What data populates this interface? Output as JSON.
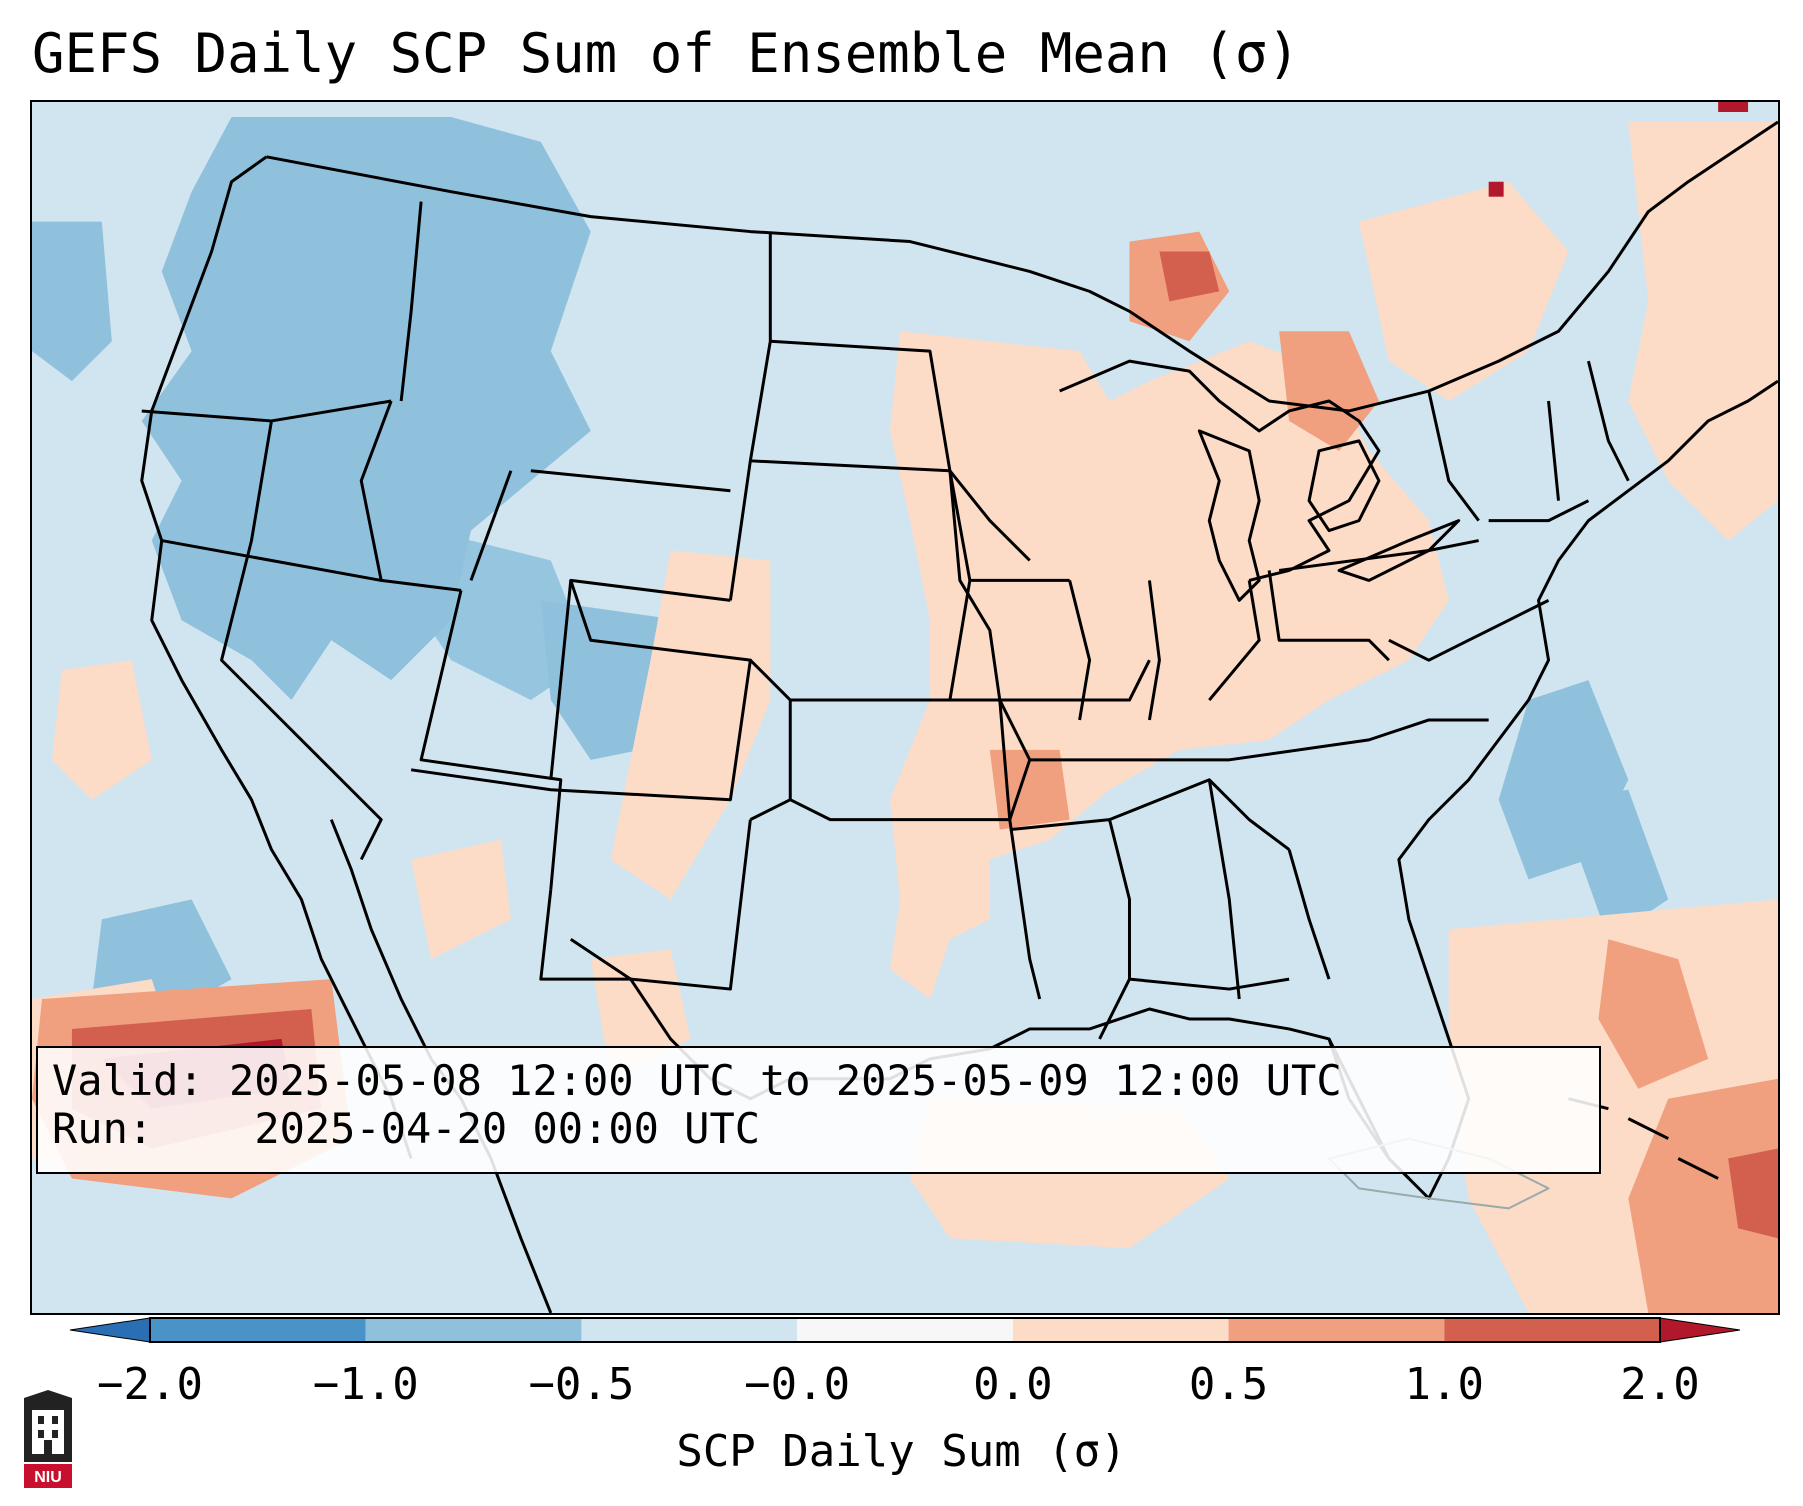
{
  "title": "GEFS Daily SCP Sum of Ensemble Mean (σ)",
  "info": {
    "valid_label": "Valid:",
    "valid_value": "2025-05-08 12:00 UTC to 2025-05-09 12:00 UTC",
    "run_label": "Run:",
    "run_value": "2025-04-20 00:00 UTC"
  },
  "colorbar": {
    "label": "SCP Daily Sum (σ)",
    "ticks": [
      "−2.0",
      "−1.0",
      "−0.5",
      "−0.0",
      "0.0",
      "0.5",
      "1.0",
      "2.0"
    ],
    "colors": {
      "under": "#2a6fb4",
      "bins": [
        "#4a93c8",
        "#8fc1dd",
        "#d1e5f0",
        "#f7f7f7",
        "#fcdbc7",
        "#f0a07e",
        "#d35f4e"
      ],
      "over": "#b2182b"
    },
    "extend": "both"
  },
  "logo": {
    "text": "NIU",
    "color": "#c8102e"
  },
  "colors": {
    "background_field": "#d1e5f0",
    "border_lines": "#000000"
  }
}
